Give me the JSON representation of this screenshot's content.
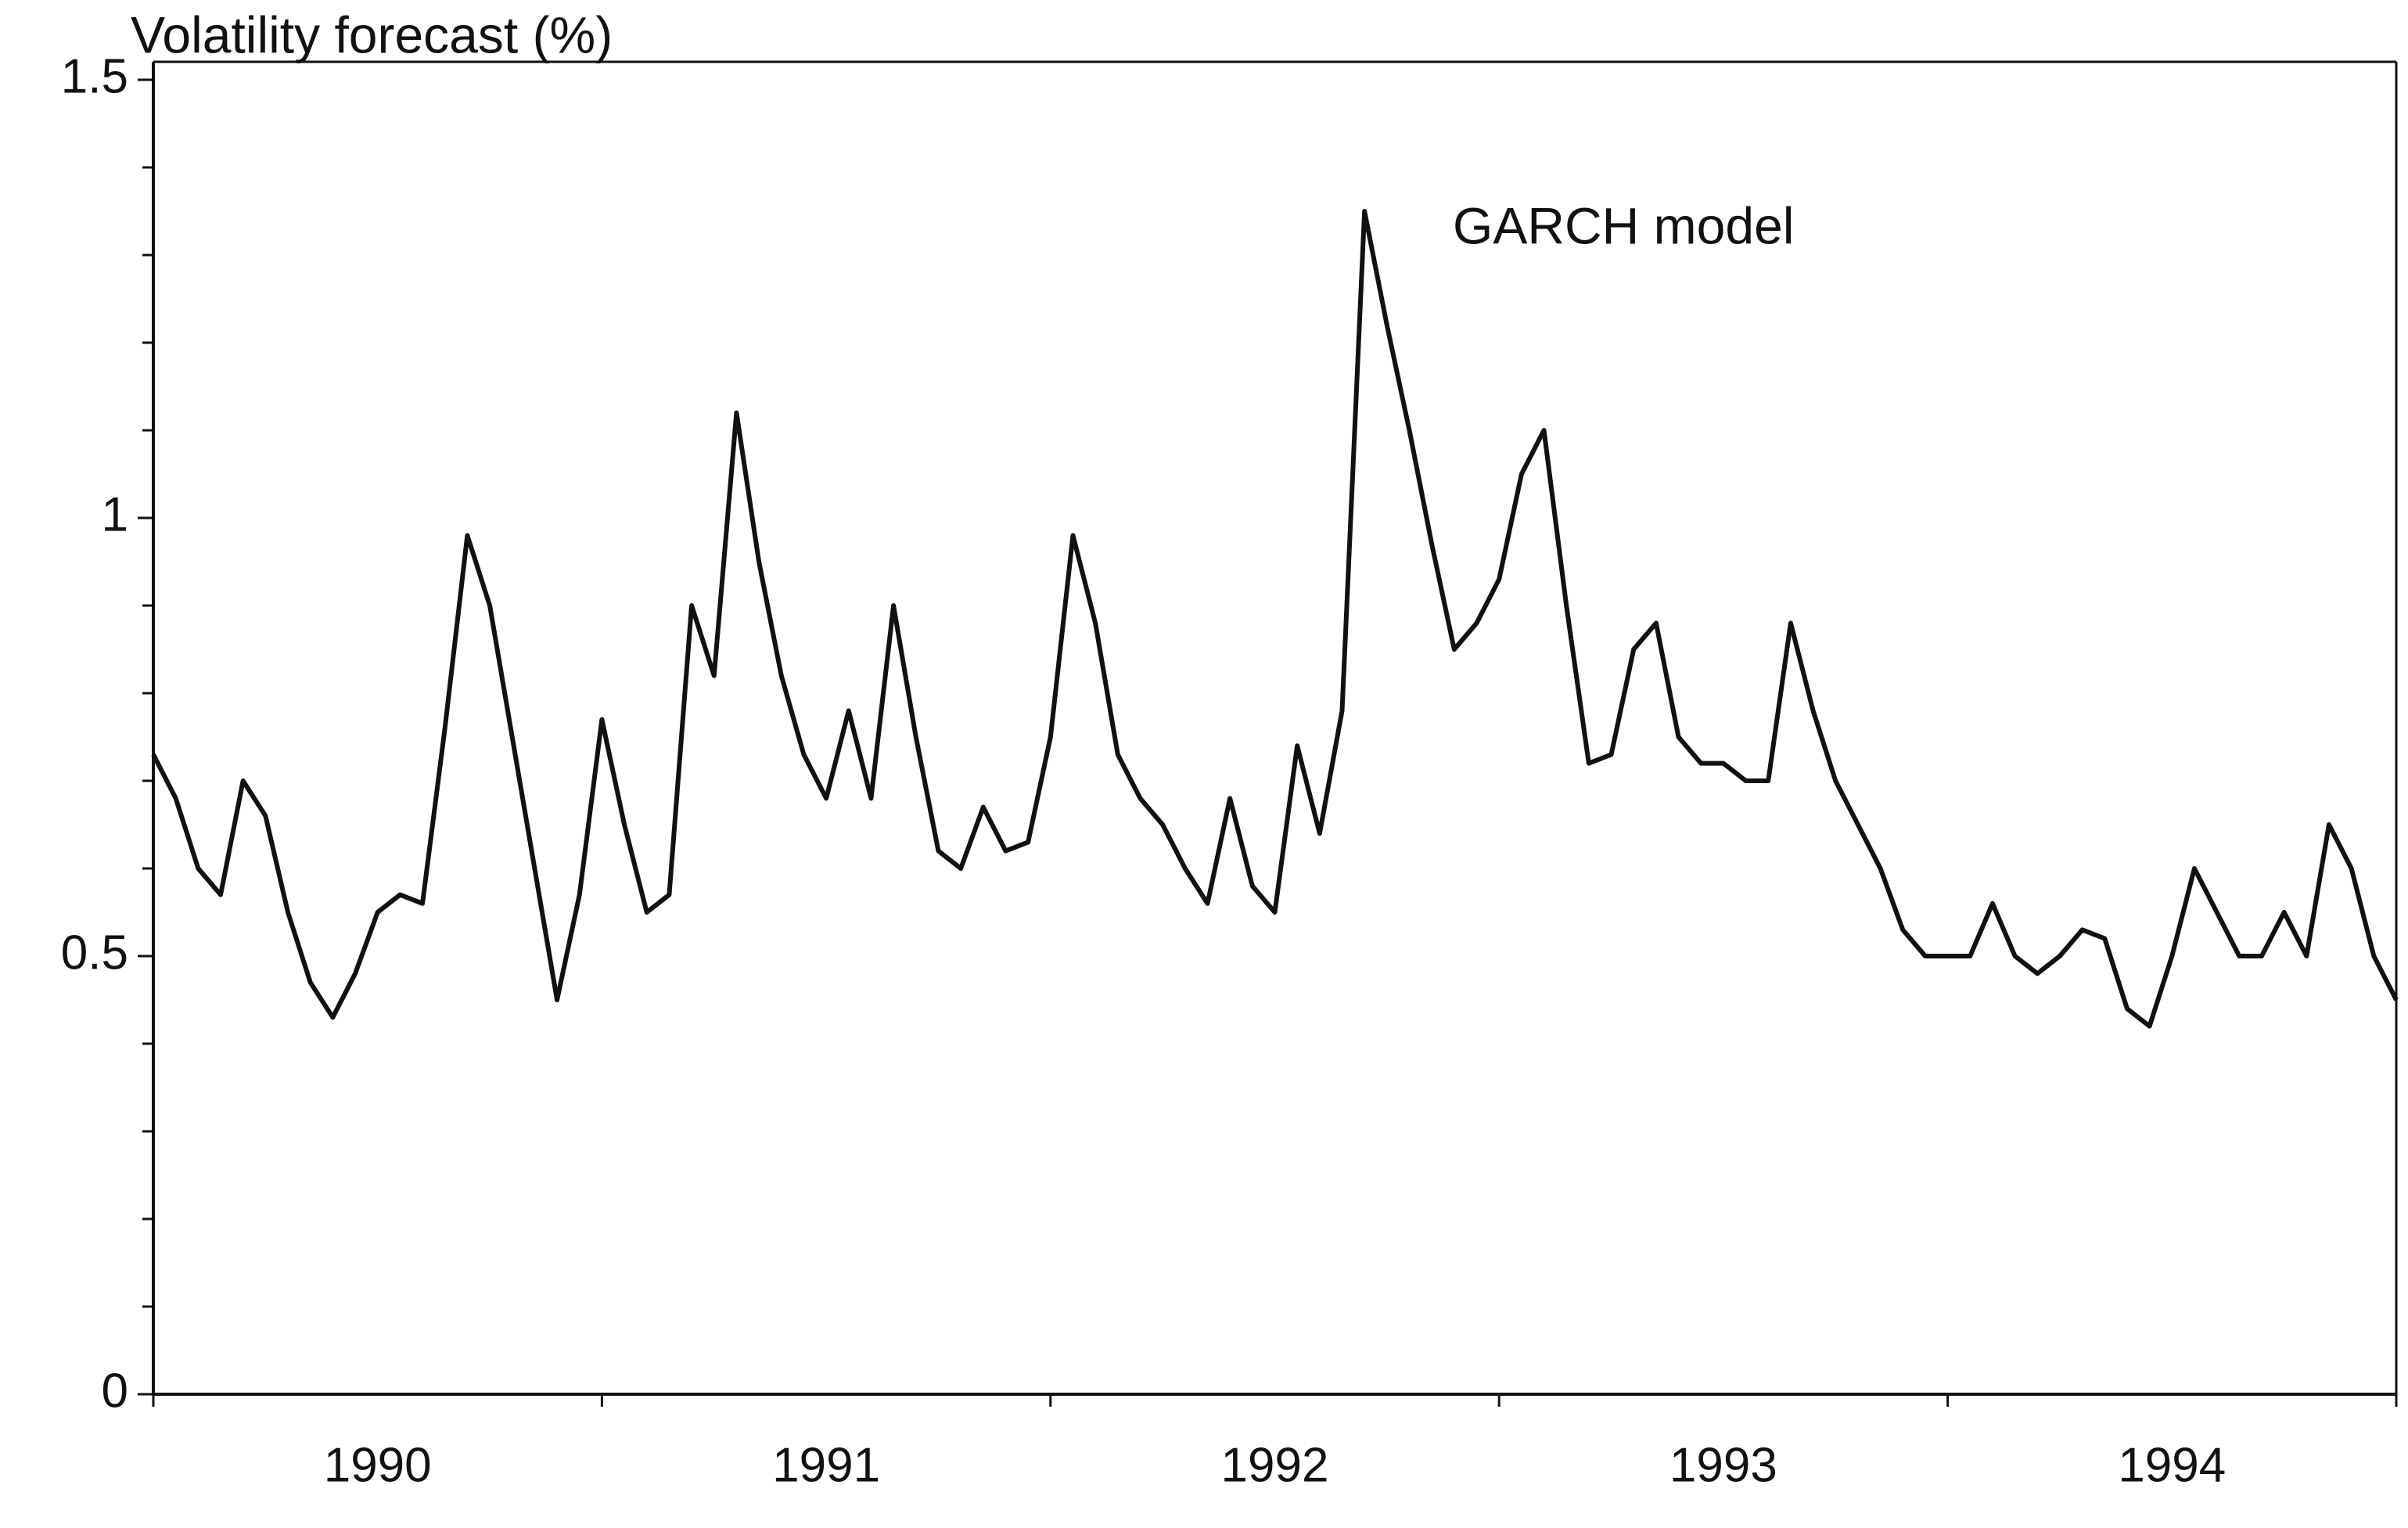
{
  "chart_data": {
    "type": "line",
    "title": "Volatility forecast (%)",
    "annotation": "GARCH model",
    "xlim": [
      1990,
      1995
    ],
    "xticks": [
      1990,
      1991,
      1992,
      1993,
      1994,
      1995
    ],
    "xlabels": [
      {
        "value": 1990.5,
        "label": "1990"
      },
      {
        "value": 1991.5,
        "label": "1991"
      },
      {
        "value": 1992.5,
        "label": "1992"
      },
      {
        "value": 1993.5,
        "label": "1993"
      },
      {
        "value": 1994.5,
        "label": "1994"
      }
    ],
    "ylim": [
      0,
      1.5
    ],
    "yticks": [
      0,
      0.5,
      1,
      1.5
    ],
    "yminorticks": [
      0.1,
      0.2,
      0.3,
      0.4,
      0.6,
      0.7,
      0.8,
      0.9,
      1.1,
      1.2,
      1.3,
      1.4
    ],
    "series": [
      {
        "color": "#111111",
        "x": [
          1990,
          1990.05,
          1990.1,
          1990.15,
          1990.2,
          1990.25,
          1990.3,
          1990.35,
          1990.4,
          1990.45,
          1990.5,
          1990.55,
          1990.6,
          1990.65,
          1990.7,
          1990.75,
          1990.8,
          1990.85,
          1990.9,
          1990.95,
          1991,
          1991.05,
          1991.1,
          1991.15,
          1991.2,
          1991.25,
          1991.3,
          1991.35,
          1991.4,
          1991.45,
          1991.5,
          1991.55,
          1991.6,
          1991.65,
          1991.7,
          1991.75,
          1991.8,
          1991.85,
          1991.9,
          1991.95,
          1992,
          1992.05,
          1992.1,
          1992.15,
          1992.2,
          1992.25,
          1992.3,
          1992.35,
          1992.4,
          1992.45,
          1992.5,
          1992.55,
          1992.6,
          1992.65,
          1992.7,
          1992.75,
          1992.8,
          1992.85,
          1992.9,
          1992.95,
          1993,
          1993.05,
          1993.1,
          1993.15,
          1993.2,
          1993.25,
          1993.3,
          1993.35,
          1993.4,
          1993.45,
          1993.5,
          1993.55,
          1993.6,
          1993.65,
          1993.7,
          1993.75,
          1993.8,
          1993.85,
          1993.9,
          1993.95,
          1994,
          1994.05,
          1994.1,
          1994.15,
          1994.2,
          1994.25,
          1994.3,
          1994.35,
          1994.4,
          1994.45,
          1994.5,
          1994.55,
          1994.6,
          1994.65,
          1994.7,
          1994.75,
          1994.8,
          1994.85,
          1994.9,
          1994.95,
          1995
        ],
        "values": [
          0.73,
          0.68,
          0.6,
          0.57,
          0.7,
          0.66,
          0.55,
          0.47,
          0.43,
          0.48,
          0.55,
          0.57,
          0.56,
          0.76,
          0.98,
          0.9,
          0.75,
          0.6,
          0.45,
          0.57,
          0.77,
          0.65,
          0.55,
          0.57,
          0.9,
          0.82,
          1.12,
          0.95,
          0.82,
          0.73,
          0.68,
          0.78,
          0.68,
          0.9,
          0.75,
          0.62,
          0.6,
          0.67,
          0.62,
          0.63,
          0.75,
          0.98,
          0.88,
          0.73,
          0.68,
          0.65,
          0.6,
          0.56,
          0.68,
          0.58,
          0.55,
          0.74,
          0.64,
          0.78,
          1.35,
          1.22,
          1.1,
          0.97,
          0.85,
          0.88,
          0.93,
          1.05,
          1.1,
          0.9,
          0.72,
          0.73,
          0.85,
          0.88,
          0.75,
          0.72,
          0.72,
          0.7,
          0.7,
          0.88,
          0.78,
          0.7,
          0.65,
          0.6,
          0.53,
          0.5,
          0.5,
          0.5,
          0.56,
          0.5,
          0.48,
          0.5,
          0.53,
          0.52,
          0.44,
          0.42,
          0.5,
          0.6,
          0.55,
          0.5,
          0.5,
          0.55,
          0.5,
          0.65,
          0.6,
          0.5,
          0.45
        ]
      }
    ]
  }
}
